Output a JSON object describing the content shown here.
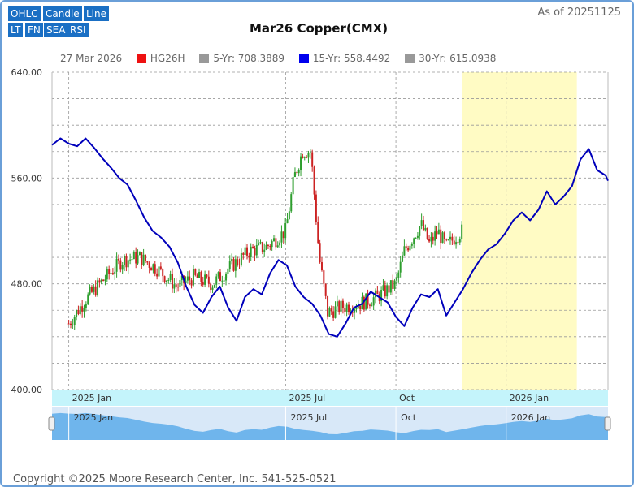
{
  "toolbar": {
    "buttons": [
      "OHLC",
      "Candle",
      "Line",
      "LT",
      "FN",
      "SEA",
      "RSI"
    ]
  },
  "as_of": "As of 20251125",
  "copyright": "Copyright ©2025 Moore Research Center, Inc. 541-525-0521",
  "legend": {
    "date": "27 Mar 2026",
    "items": [
      {
        "label": "HG26H",
        "color": "#ee1111"
      },
      {
        "label": "5-Yr: 708.3889",
        "color": "#999999"
      },
      {
        "label": "15-Yr: 558.4492",
        "color": "#0000ee"
      },
      {
        "label": "30-Yr: 615.0938",
        "color": "#999999"
      }
    ]
  },
  "chart_data": {
    "type": "line",
    "title": "Mar26 Copper(CMX)",
    "xlabel": "",
    "ylabel": "",
    "ylim": [
      400,
      640
    ],
    "yticks": [
      "400.00",
      "480.00",
      "560.00",
      "640.00"
    ],
    "xlim": [
      "2024-12-18",
      "2026-03-27"
    ],
    "xticks": [
      {
        "date": "2025-01-01",
        "label": "2025 Jan"
      },
      {
        "date": "2025-07-01",
        "label": "2025 Jul"
      },
      {
        "date": "2025-10-01",
        "label": "Oct"
      },
      {
        "date": "2026-01-01",
        "label": "2026 Jan"
      }
    ],
    "highlight_range": [
      "2025-11-25",
      "2026-03-01"
    ],
    "grid": true,
    "colors": {
      "up": "#2e9e2e",
      "down": "#cc2222",
      "seasonal": "#0000bb",
      "highlight": "#fffbc4",
      "navigator": "#6fb5ec"
    },
    "series": [
      {
        "name": "15-Yr",
        "kind": "line",
        "x": [
          "2024-12-18",
          "2024-12-25",
          "2025-01-01",
          "2025-01-08",
          "2025-01-15",
          "2025-01-22",
          "2025-01-29",
          "2025-02-05",
          "2025-02-12",
          "2025-02-19",
          "2025-02-26",
          "2025-03-05",
          "2025-03-12",
          "2025-03-19",
          "2025-03-26",
          "2025-04-02",
          "2025-04-09",
          "2025-04-16",
          "2025-04-23",
          "2025-04-30",
          "2025-05-07",
          "2025-05-14",
          "2025-05-21",
          "2025-05-28",
          "2025-06-04",
          "2025-06-11",
          "2025-06-18",
          "2025-06-25",
          "2025-07-02",
          "2025-07-09",
          "2025-07-16",
          "2025-07-23",
          "2025-07-30",
          "2025-08-06",
          "2025-08-13",
          "2025-08-20",
          "2025-08-27",
          "2025-09-03",
          "2025-09-10",
          "2025-09-17",
          "2025-09-24",
          "2025-10-01",
          "2025-10-08",
          "2025-10-15",
          "2025-10-22",
          "2025-10-29",
          "2025-11-05",
          "2025-11-12",
          "2025-11-19",
          "2025-11-26",
          "2025-12-03",
          "2025-12-10",
          "2025-12-17",
          "2025-12-24",
          "2025-12-31",
          "2026-01-07",
          "2026-01-14",
          "2026-01-21",
          "2026-01-28",
          "2026-02-04",
          "2026-02-11",
          "2026-02-18",
          "2026-02-25",
          "2026-03-04",
          "2026-03-11",
          "2026-03-18",
          "2026-03-25",
          "2026-03-27"
        ],
        "values": [
          585,
          590,
          586,
          584,
          590,
          583,
          575,
          568,
          560,
          555,
          543,
          530,
          520,
          515,
          508,
          496,
          478,
          464,
          458,
          470,
          478,
          462,
          452,
          470,
          476,
          472,
          488,
          498,
          494,
          478,
          470,
          465,
          456,
          442,
          440,
          450,
          462,
          465,
          474,
          470,
          466,
          455,
          448,
          462,
          472,
          470,
          476,
          456,
          466,
          476,
          488,
          498,
          506,
          510,
          518,
          528,
          534,
          528,
          536,
          550,
          540,
          546,
          554,
          574,
          582,
          566,
          562,
          558
        ]
      },
      {
        "name": "HG26H",
        "kind": "ohlc",
        "x": [
          "2025-01-01",
          "2025-01-15",
          "2025-02-01",
          "2025-02-15",
          "2025-03-01",
          "2025-03-15",
          "2025-04-01",
          "2025-04-15",
          "2025-05-01",
          "2025-05-15",
          "2025-06-01",
          "2025-06-15",
          "2025-07-01",
          "2025-07-08",
          "2025-07-15",
          "2025-07-22",
          "2025-07-29",
          "2025-08-05",
          "2025-08-15",
          "2025-09-01",
          "2025-09-15",
          "2025-10-01",
          "2025-10-08",
          "2025-10-15",
          "2025-10-22",
          "2025-10-29",
          "2025-11-05",
          "2025-11-12",
          "2025-11-19",
          "2025-11-25"
        ],
        "values": [
          450,
          468,
          485,
          498,
          500,
          492,
          478,
          485,
          480,
          492,
          505,
          508,
          520,
          560,
          580,
          580,
          500,
          458,
          462,
          465,
          470,
          480,
          505,
          515,
          525,
          510,
          520,
          508,
          515,
          520
        ]
      }
    ]
  }
}
